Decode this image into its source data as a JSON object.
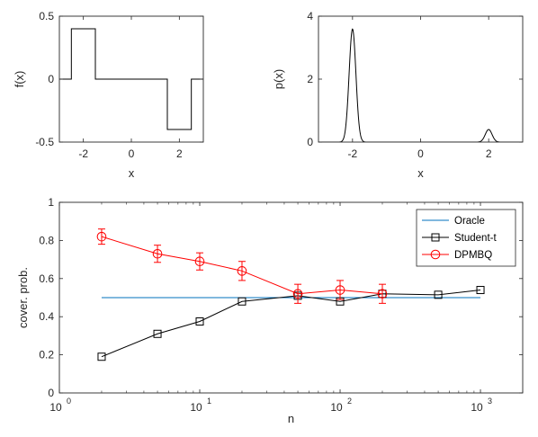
{
  "chart_data": [
    {
      "type": "line",
      "xlabel": "x",
      "ylabel": "f(x)",
      "xlim": [
        -3,
        3
      ],
      "ylim": [
        -0.5,
        0.5
      ],
      "xticks": [
        -2,
        0,
        2
      ],
      "yticks": [
        -0.5,
        0,
        0.5
      ],
      "ytick_labels": [
        "-0.5",
        "0",
        "0.5"
      ],
      "series": [
        {
          "color": "#000000",
          "x": [
            -3,
            -2.5,
            -2.5,
            -1.5,
            -1.5,
            1.5,
            1.5,
            2.5,
            2.5,
            3
          ],
          "y": [
            0,
            0,
            0.4,
            0.4,
            0,
            0,
            -0.4,
            -0.4,
            0,
            0
          ]
        }
      ]
    },
    {
      "type": "line",
      "xlabel": "x",
      "ylabel": "p(x)",
      "xlim": [
        -3,
        3
      ],
      "ylim": [
        0,
        4
      ],
      "xticks": [
        -2,
        0,
        2
      ],
      "yticks": [
        0,
        2,
        4
      ],
      "series": [
        {
          "color": "#000000",
          "mixture": [
            {
              "weight": 0.9,
              "mean": -2,
              "sd": 0.1
            },
            {
              "weight": 0.1,
              "mean": 2,
              "sd": 0.1
            }
          ]
        }
      ]
    },
    {
      "type": "line",
      "xlabel": "n",
      "ylabel": "cover. prob.",
      "xscale": "log",
      "xlim": [
        1,
        2000
      ],
      "ylim": [
        0,
        1
      ],
      "xticks": [
        1,
        10,
        100,
        1000
      ],
      "xtick_labels": [
        {
          "base": "10",
          "exp": "0"
        },
        {
          "base": "10",
          "exp": "1"
        },
        {
          "base": "10",
          "exp": "2"
        },
        {
          "base": "10",
          "exp": "3"
        }
      ],
      "yticks": [
        0,
        0.2,
        0.4,
        0.6,
        0.8,
        1
      ],
      "ytick_labels": [
        "0",
        "0.2",
        "0.4",
        "0.6",
        "0.8",
        "1"
      ],
      "legend": "top-right",
      "series": [
        {
          "name": "Oracle",
          "color": "#0072BD",
          "x": [
            2,
            1000
          ],
          "y": [
            0.5,
            0.5
          ]
        },
        {
          "name": "Student-t",
          "color": "#000000",
          "marker": "square",
          "x": [
            2,
            5,
            10,
            20,
            50,
            100,
            200,
            500,
            1000
          ],
          "y": [
            0.19,
            0.31,
            0.375,
            0.48,
            0.51,
            0.48,
            0.52,
            0.515,
            0.54
          ]
        },
        {
          "name": "DPMBQ",
          "color": "#FF0000",
          "marker": "circle",
          "x": [
            2,
            5,
            10,
            20,
            50,
            100,
            200
          ],
          "y": [
            0.82,
            0.73,
            0.69,
            0.64,
            0.52,
            0.54,
            0.52
          ],
          "error": [
            0.04,
            0.045,
            0.045,
            0.05,
            0.05,
            0.05,
            0.05
          ]
        }
      ]
    }
  ]
}
